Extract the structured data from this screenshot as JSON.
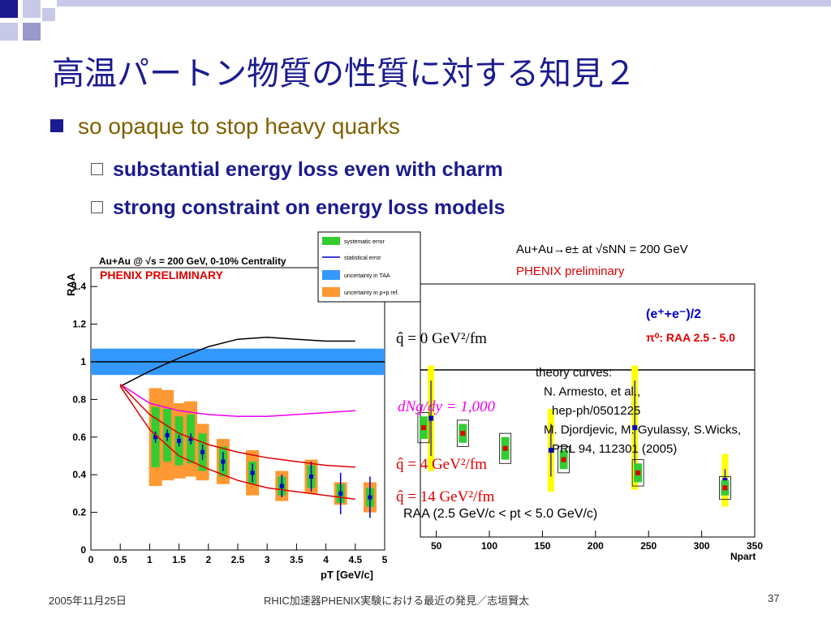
{
  "slide": {
    "title": "高温パートン物質の性質に対する知見２",
    "bullet1": "so opaque to stop heavy quarks",
    "sub_bullets": [
      "substantial energy loss even with charm",
      "strong constraint on energy loss models"
    ]
  },
  "footer": {
    "date": "2005年11月25日",
    "center": "RHIC加速器PHENIX実験における最近の発見／志垣賢太",
    "page": "37"
  },
  "colors": {
    "title": "#1b1b8f",
    "bullet": "#806000",
    "syst_green": "#33cc33",
    "pp_orange": "#ff9933",
    "taa_blue": "#3399ff",
    "data_blue": "#0000cc",
    "pi0_red": "#e00000",
    "e_yellow": "#ffff00",
    "theory_red": "#dd0000",
    "theory_magenta": "#ee00ee"
  },
  "chart_data": [
    {
      "type": "scatter",
      "title": "Au+Au @ √s = 200 GeV, 0-10% Centrality",
      "subtitle": "PHENIX PRELIMINARY",
      "xlabel": "pT [GeV/c]",
      "ylabel": "RAA",
      "xlim": [
        0,
        5
      ],
      "ylim": [
        0,
        1.5
      ],
      "xticks": [
        "0",
        "0.5",
        "1",
        "1.5",
        "2",
        "2.5",
        "3",
        "3.5",
        "4",
        "4.5",
        "5"
      ],
      "yticks": [
        "0",
        "0.2",
        "0.4",
        "0.6",
        "0.8",
        "1",
        "1.2",
        "1.4"
      ],
      "legend": [
        "systematic error",
        "statistical error",
        "uncertainty in TAA",
        "uncertainty in p+p ref."
      ],
      "legend_position": "top-right",
      "taa_band": [
        0.93,
        1.07
      ],
      "points": [
        {
          "x": 1.1,
          "y": 0.6,
          "stat": 0.03,
          "syst": 0.16,
          "pp": 0.26
        },
        {
          "x": 1.3,
          "y": 0.61,
          "stat": 0.03,
          "syst": 0.14,
          "pp": 0.24
        },
        {
          "x": 1.5,
          "y": 0.58,
          "stat": 0.03,
          "syst": 0.13,
          "pp": 0.2
        },
        {
          "x": 1.7,
          "y": 0.59,
          "stat": 0.03,
          "syst": 0.13,
          "pp": 0.2
        },
        {
          "x": 1.9,
          "y": 0.52,
          "stat": 0.04,
          "syst": 0.1,
          "pp": 0.15
        },
        {
          "x": 2.25,
          "y": 0.47,
          "stat": 0.05,
          "syst": 0.08,
          "pp": 0.12
        },
        {
          "x": 2.75,
          "y": 0.41,
          "stat": 0.05,
          "syst": 0.06,
          "pp": 0.12
        },
        {
          "x": 3.25,
          "y": 0.34,
          "stat": 0.06,
          "syst": 0.05,
          "pp": 0.08
        },
        {
          "x": 3.75,
          "y": 0.39,
          "stat": 0.08,
          "syst": 0.06,
          "pp": 0.09
        },
        {
          "x": 4.25,
          "y": 0.3,
          "stat": 0.11,
          "syst": 0.05,
          "pp": 0.06
        },
        {
          "x": 4.75,
          "y": 0.28,
          "stat": 0.11,
          "syst": 0.05,
          "pp": 0.08
        }
      ],
      "theory": [
        {
          "label": "q̂ = 0 GeV²/fm",
          "color": "#000000",
          "x": [
            0.5,
            1.0,
            1.5,
            2.0,
            2.5,
            3.0,
            3.5,
            4.0,
            4.5
          ],
          "y": [
            0.87,
            0.95,
            1.02,
            1.08,
            1.12,
            1.13,
            1.12,
            1.11,
            1.11
          ]
        },
        {
          "label": "dNg/dy = 1,000",
          "color": "#ee00ee",
          "x": [
            0.5,
            1.0,
            1.5,
            2.0,
            2.5,
            3.0,
            3.5,
            4.0,
            4.5
          ],
          "y": [
            0.88,
            0.78,
            0.74,
            0.72,
            0.71,
            0.71,
            0.72,
            0.73,
            0.74
          ]
        },
        {
          "label": "q̂ = 4 GeV²/fm",
          "color": "#dd0000",
          "x": [
            0.5,
            1.0,
            1.5,
            2.0,
            2.5,
            3.0,
            3.5,
            4.0,
            4.5
          ],
          "y": [
            0.88,
            0.72,
            0.62,
            0.56,
            0.52,
            0.49,
            0.47,
            0.45,
            0.44
          ]
        },
        {
          "label": "q̂ = 14 GeV²/fm",
          "color": "#dd0000",
          "x": [
            0.5,
            1.0,
            1.5,
            2.0,
            2.5,
            3.0,
            3.5,
            4.0,
            4.5
          ],
          "y": [
            0.87,
            0.64,
            0.5,
            0.43,
            0.37,
            0.33,
            0.31,
            0.29,
            0.27
          ]
        }
      ]
    },
    {
      "type": "scatter",
      "title": "Au+Au→e± at √sNN = 200 GeV",
      "subtitle": "PHENIX preliminary",
      "xlabel": "Npart",
      "ylabel": "",
      "caption": "RAA (2.5 GeV/c < pt < 5.0 GeV/c)",
      "xlim": [
        35,
        350
      ],
      "ylim": [
        0,
        1.5
      ],
      "xticks": [
        "50",
        "100",
        "150",
        "200",
        "250",
        "300",
        "350"
      ],
      "legend": [
        "(e⁺+e⁻)/2",
        "π⁰: RAA 2.5 - 5.0"
      ],
      "legend_position": "top-right",
      "theory_note": [
        "theory curves:",
        "N. Armesto, et al.,",
        "hep-ph/0501225",
        "M. Djordjevic, M. Gyulassy, S.Wicks,",
        "PRL 94, 112301 (2005)"
      ],
      "electrons": [
        {
          "x": 45,
          "y": 0.7,
          "stat": 0.2
        },
        {
          "x": 158,
          "y": 0.53,
          "stat": 0.14
        },
        {
          "x": 237,
          "y": 0.65,
          "stat": 0.25
        },
        {
          "x": 322,
          "y": 0.37,
          "stat": 0.06
        }
      ],
      "pi0": [
        {
          "x": 38,
          "y": 0.65,
          "err": 0.06
        },
        {
          "x": 75,
          "y": 0.62,
          "err": 0.05
        },
        {
          "x": 115,
          "y": 0.54,
          "err": 0.06
        },
        {
          "x": 170,
          "y": 0.48,
          "err": 0.05
        },
        {
          "x": 240,
          "y": 0.41,
          "err": 0.05
        },
        {
          "x": 322,
          "y": 0.33,
          "err": 0.04
        }
      ]
    }
  ]
}
